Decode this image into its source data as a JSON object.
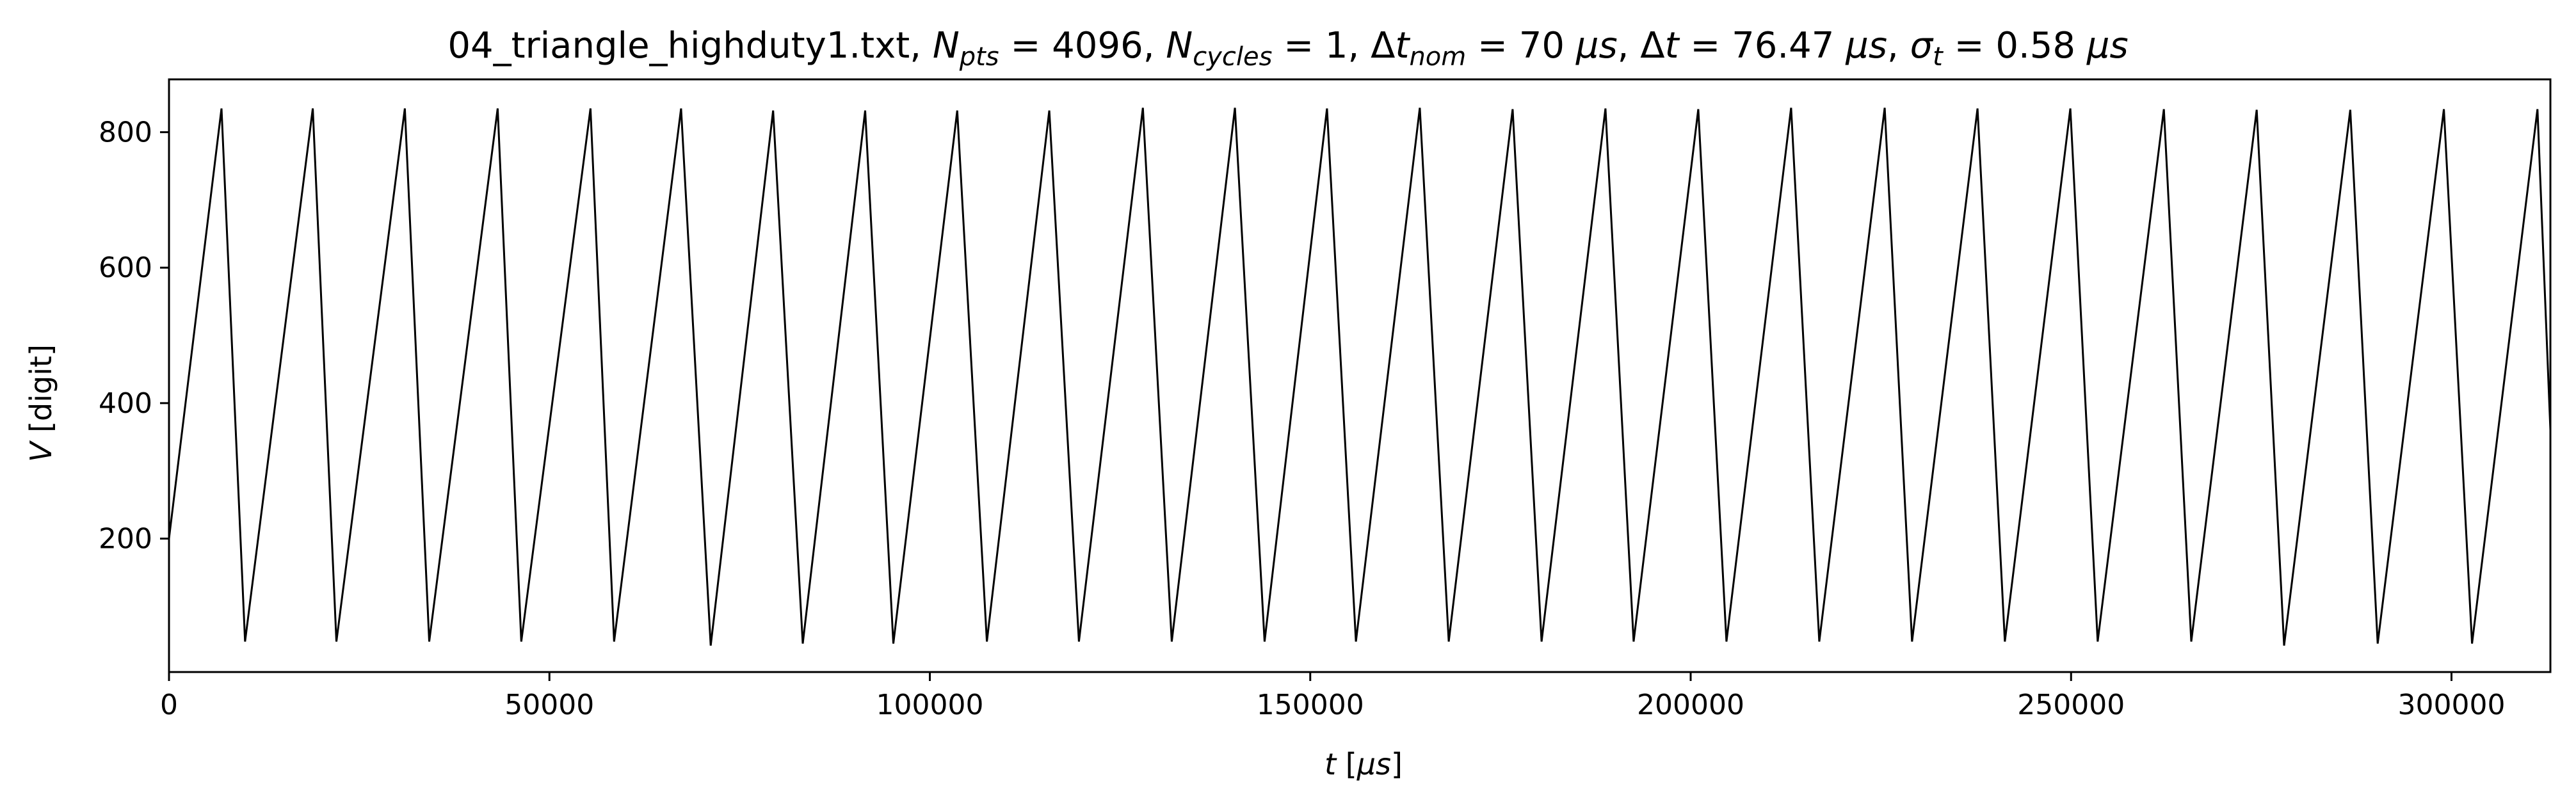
{
  "chart_data": {
    "type": "line",
    "title": {
      "file": "04_triangle_highduty1.txt, ",
      "npts_sym": "N",
      "npts_sub": "pts",
      "npts_val": " = 4096, ",
      "ncyc_sym": "N",
      "ncyc_sub": "cycles",
      "ncyc_val": " = 1, ",
      "dtnom_delta": "Δ",
      "dtnom_sym": "t",
      "dtnom_sub": "nom",
      "dtnom_val": " = 70 ",
      "dtnom_unit": "μs",
      "dtnom_sep": ", ",
      "dt_delta": "Δ",
      "dt_sym": "t",
      "dt_val": " = 76.47 ",
      "dt_unit": "μs",
      "dt_sep": ", ",
      "sig_sym": "σ",
      "sig_sub": "t",
      "sig_val": " = 0.58 ",
      "sig_unit": "μs"
    },
    "xlabel": {
      "sym": "t",
      "open": " [",
      "unit": "μs",
      "close": "]"
    },
    "ylabel": {
      "sym": "V",
      "rest": " [digit]"
    },
    "xlim": [
      0,
      313000
    ],
    "ylim": [
      3,
      878
    ],
    "xticks": [
      0,
      50000,
      100000,
      150000,
      200000,
      250000,
      300000
    ],
    "yticks": [
      200,
      400,
      600,
      800
    ],
    "line_color": "#000000",
    "grid": false,
    "series": [
      {
        "x": [
          0,
          6900,
          10000,
          18900,
          22000,
          31000,
          34200,
          43200,
          46300,
          55400,
          58500,
          67300,
          71200,
          79400,
          83300,
          91500,
          95200,
          103600,
          107500,
          115700,
          119600,
          128000,
          131800,
          140100,
          144000,
          152200,
          156000,
          164400,
          168200,
          176600,
          180400,
          188800,
          192500,
          201000,
          204700,
          213200,
          216900,
          225500,
          229100,
          237700,
          241300,
          249900,
          253500,
          262200,
          265800,
          274400,
          278000,
          286700,
          290300,
          299000,
          302700,
          311300,
          313000
        ],
        "y": [
          200,
          835,
          48,
          835,
          48,
          835,
          48,
          835,
          48,
          835,
          48,
          835,
          42,
          832,
          45,
          832,
          45,
          832,
          48,
          832,
          48,
          836,
          48,
          836,
          48,
          835,
          48,
          836,
          48,
          834,
          48,
          835,
          48,
          834,
          48,
          836,
          48,
          836,
          48,
          835,
          48,
          835,
          48,
          834,
          48,
          833,
          42,
          833,
          45,
          834,
          45,
          834,
          360
        ]
      }
    ]
  }
}
